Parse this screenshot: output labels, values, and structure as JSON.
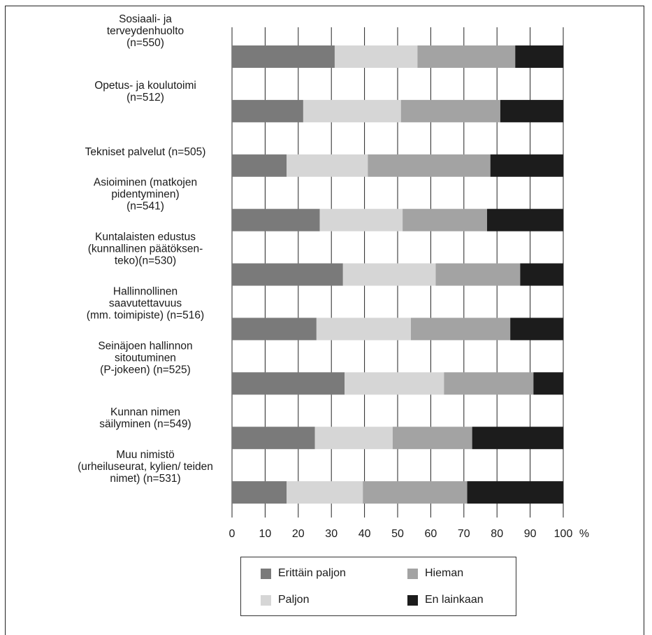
{
  "chart_data": {
    "type": "bar",
    "stacked": true,
    "orientation": "horizontal",
    "categories": [
      [
        "Sosiaali- ja",
        "terveydenhuolto",
        "(n=550)"
      ],
      [
        "Opetus- ja koulutoimi",
        "(n=512)"
      ],
      [
        "Tekniset palvelut (n=505)"
      ],
      [
        "Asioiminen (matkojen",
        "pidentyminen)",
        "(n=541)"
      ],
      [
        "Kuntalaisten edustus",
        "(kunnallinen päätöksen-",
        "teko)(n=530)"
      ],
      [
        "Hallinnollinen",
        "saavutettavuus",
        "(mm. toimipiste) (n=516)"
      ],
      [
        "Seinäjoen hallinnon",
        "sitoutuminen",
        "(P-jokeen) (n=525)"
      ],
      [
        "Kunnan nimen",
        "säilyminen (n=549)"
      ],
      [
        "Muu nimistö",
        "(urheiluseurat, kylien/ teiden",
        "nimet) (n=531)"
      ]
    ],
    "series": [
      {
        "name": "Erittäin paljon",
        "color": "#7a7a7a",
        "values": [
          31,
          21.5,
          16.5,
          26.5,
          33.5,
          25.5,
          34,
          25,
          16.5
        ]
      },
      {
        "name": "Paljon",
        "color": "#d6d6d6",
        "values": [
          25,
          29.5,
          24.5,
          25,
          28,
          28.5,
          30,
          23.5,
          23
        ]
      },
      {
        "name": "Hieman",
        "color": "#a3a3a3",
        "values": [
          29.5,
          30,
          37,
          25.5,
          25.5,
          30,
          27,
          24,
          31.5
        ]
      },
      {
        "name": "En lainkaan",
        "color": "#1c1c1c",
        "values": [
          14.5,
          19,
          22,
          23,
          13,
          16,
          9,
          27.5,
          29
        ]
      }
    ],
    "xlim": [
      0,
      100
    ],
    "xticks": [
      "0",
      "10",
      "20",
      "30",
      "40",
      "50",
      "60",
      "70",
      "80",
      "90",
      "100"
    ],
    "xunit": "%",
    "grid": true,
    "legend_position": "bottom"
  }
}
